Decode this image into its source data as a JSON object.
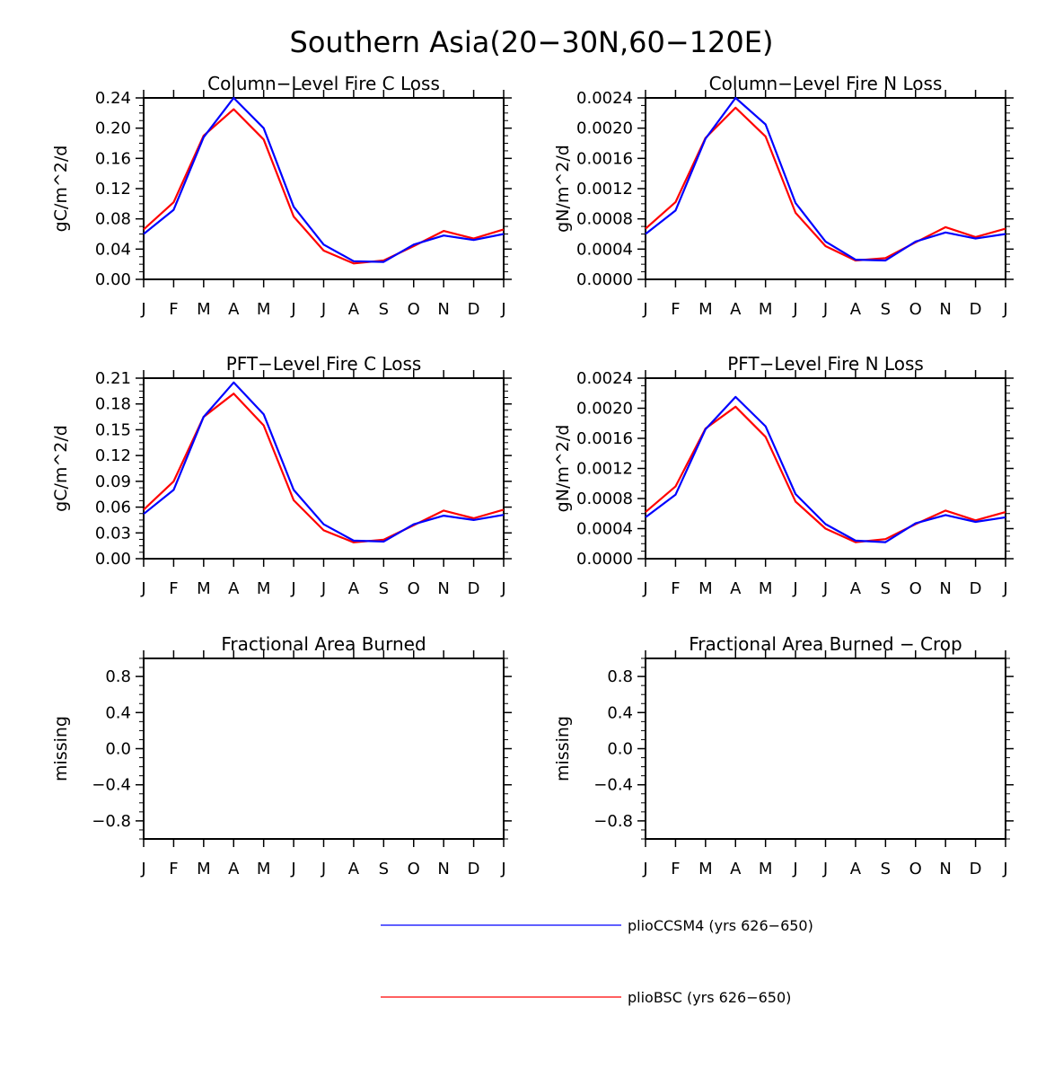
{
  "figure_title": "Southern Asia(20-30N,60-120E)",
  "colors": {
    "series_1": "#0000ff",
    "series_2": "#ff0000",
    "axis": "#000000"
  },
  "legend": [
    {
      "label": "plioCCSM4 (yrs 626-650)",
      "color": "#0000ff"
    },
    {
      "label": "plioBSC (yrs 626-650)",
      "color": "#ff0000"
    }
  ],
  "chart_data": [
    {
      "type": "line",
      "title": "Column-Level Fire C Loss",
      "ylabel": "gC/m^2/d",
      "categories": [
        "J",
        "F",
        "M",
        "A",
        "M",
        "J",
        "J",
        "A",
        "S",
        "O",
        "N",
        "D",
        "J"
      ],
      "ylim": [
        0,
        0.24
      ],
      "yticks": [
        "0.00",
        "0.04",
        "0.08",
        "0.12",
        "0.16",
        "0.20",
        "0.24"
      ],
      "ytick_values": [
        0,
        0.04,
        0.08,
        0.12,
        0.16,
        0.2,
        0.24
      ],
      "series": [
        {
          "name": "plioCCSM4 (yrs 626-650)",
          "values": [
            0.06,
            0.092,
            0.188,
            0.24,
            0.2,
            0.096,
            0.046,
            0.024,
            0.023,
            0.046,
            0.058,
            0.052,
            0.06
          ]
        },
        {
          "name": "plioBSC (yrs 626-650)",
          "values": [
            0.066,
            0.102,
            0.19,
            0.225,
            0.185,
            0.083,
            0.038,
            0.021,
            0.025,
            0.044,
            0.064,
            0.054,
            0.066
          ]
        }
      ]
    },
    {
      "type": "line",
      "title": "Column-Level Fire N Loss",
      "ylabel": "gN/m^2/d",
      "categories": [
        "J",
        "F",
        "M",
        "A",
        "M",
        "J",
        "J",
        "A",
        "S",
        "O",
        "N",
        "D",
        "J"
      ],
      "ylim": [
        0,
        0.0024
      ],
      "yticks": [
        "0.0000",
        "0.0004",
        "0.0008",
        "0.0012",
        "0.0016",
        "0.0020",
        "0.0024"
      ],
      "ytick_values": [
        0,
        0.0004,
        0.0008,
        0.0012,
        0.0016,
        0.002,
        0.0024
      ],
      "series": [
        {
          "name": "plioCCSM4 (yrs 626-650)",
          "values": [
            0.0006,
            0.00091,
            0.00186,
            0.0024,
            0.00205,
            0.00101,
            0.0005,
            0.00026,
            0.00025,
            0.0005,
            0.00062,
            0.00054,
            0.0006
          ]
        },
        {
          "name": "plioBSC (yrs 626-650)",
          "values": [
            0.00067,
            0.00102,
            0.00187,
            0.00227,
            0.00189,
            0.00088,
            0.00044,
            0.00025,
            0.00028,
            0.00049,
            0.00069,
            0.00056,
            0.00067
          ]
        }
      ]
    },
    {
      "type": "line",
      "title": "PFT-Level Fire C Loss",
      "ylabel": "gC/m^2/d",
      "categories": [
        "J",
        "F",
        "M",
        "A",
        "M",
        "J",
        "J",
        "A",
        "S",
        "O",
        "N",
        "D",
        "J"
      ],
      "ylim": [
        0,
        0.21
      ],
      "yticks": [
        "0.00",
        "0.03",
        "0.06",
        "0.09",
        "0.12",
        "0.15",
        "0.18",
        "0.21"
      ],
      "ytick_values": [
        0,
        0.03,
        0.06,
        0.09,
        0.12,
        0.15,
        0.18,
        0.21
      ],
      "series": [
        {
          "name": "plioCCSM4 (yrs 626-650)",
          "values": [
            0.052,
            0.08,
            0.165,
            0.205,
            0.168,
            0.08,
            0.04,
            0.021,
            0.02,
            0.04,
            0.05,
            0.045,
            0.051
          ]
        },
        {
          "name": "plioBSC (yrs 626-650)",
          "values": [
            0.057,
            0.09,
            0.165,
            0.192,
            0.155,
            0.068,
            0.033,
            0.019,
            0.022,
            0.039,
            0.056,
            0.047,
            0.057
          ]
        }
      ]
    },
    {
      "type": "line",
      "title": "PFT-Level Fire N Loss",
      "ylabel": "gN/m^2/d",
      "categories": [
        "J",
        "F",
        "M",
        "A",
        "M",
        "J",
        "J",
        "A",
        "S",
        "O",
        "N",
        "D",
        "J"
      ],
      "ylim": [
        0,
        0.0024
      ],
      "yticks": [
        "0.0000",
        "0.0004",
        "0.0008",
        "0.0012",
        "0.0016",
        "0.0020",
        "0.0024"
      ],
      "ytick_values": [
        0,
        0.0004,
        0.0008,
        0.0012,
        0.0016,
        0.002,
        0.0024
      ],
      "series": [
        {
          "name": "plioCCSM4 (yrs 626-650)",
          "values": [
            0.00055,
            0.00085,
            0.00172,
            0.00215,
            0.00176,
            0.00086,
            0.00046,
            0.00024,
            0.00022,
            0.00047,
            0.00058,
            0.00049,
            0.00055
          ]
        },
        {
          "name": "plioBSC (yrs 626-650)",
          "values": [
            0.00062,
            0.00096,
            0.00173,
            0.00202,
            0.00162,
            0.00076,
            0.0004,
            0.00022,
            0.00026,
            0.00046,
            0.00064,
            0.00051,
            0.00062
          ]
        }
      ]
    },
    {
      "type": "line",
      "title": "Fractional Area Burned",
      "ylabel": "missing",
      "categories": [
        "J",
        "F",
        "M",
        "A",
        "M",
        "J",
        "J",
        "A",
        "S",
        "O",
        "N",
        "D",
        "J"
      ],
      "ylim": [
        -1,
        1
      ],
      "yticks": [
        "-0.8",
        "-0.4",
        "0.0",
        "0.4",
        "0.8"
      ],
      "ytick_values": [
        -0.8,
        -0.4,
        0.0,
        0.4,
        0.8
      ],
      "series": []
    },
    {
      "type": "line",
      "title": "Fractional Area Burned - Crop",
      "ylabel": "missing",
      "categories": [
        "J",
        "F",
        "M",
        "A",
        "M",
        "J",
        "J",
        "A",
        "S",
        "O",
        "N",
        "D",
        "J"
      ],
      "ylim": [
        -1,
        1
      ],
      "yticks": [
        "-0.8",
        "-0.4",
        "0.0",
        "0.4",
        "0.8"
      ],
      "ytick_values": [
        -0.8,
        -0.4,
        0.0,
        0.4,
        0.8
      ],
      "series": []
    }
  ]
}
